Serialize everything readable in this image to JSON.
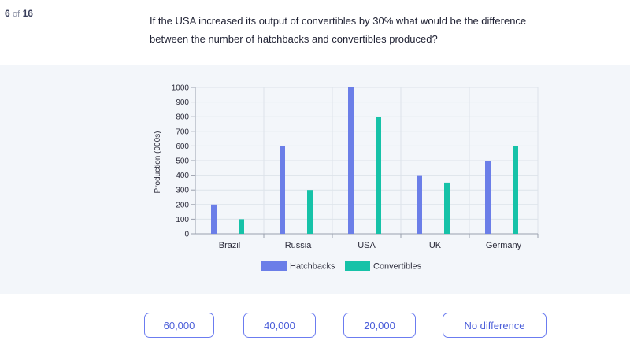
{
  "progress": {
    "current": "6",
    "of_label": "of",
    "total": "16"
  },
  "question": "If the USA increased its output of convertibles by 30% what would be the difference between the number of hatchbacks and convertibles produced?",
  "chart_data": {
    "type": "bar",
    "categories": [
      "Brazil",
      "Russia",
      "USA",
      "UK",
      "Germany"
    ],
    "series": [
      {
        "name": "Hatchbacks",
        "values": [
          200,
          600,
          1000,
          400,
          500
        ],
        "color": "#6b7ee8"
      },
      {
        "name": "Convertibles",
        "values": [
          100,
          300,
          800,
          350,
          600
        ],
        "color": "#16c2a8"
      }
    ],
    "xlabel": "",
    "ylabel": "Production (000s)",
    "ylim": [
      0,
      1000
    ],
    "yticks": [
      0,
      100,
      200,
      300,
      400,
      500,
      600,
      700,
      800,
      900,
      1000
    ],
    "grid": true,
    "legend_position": "bottom"
  },
  "answers": [
    {
      "label": "60,000"
    },
    {
      "label": "40,000"
    },
    {
      "label": "20,000"
    },
    {
      "label": "No difference"
    }
  ]
}
